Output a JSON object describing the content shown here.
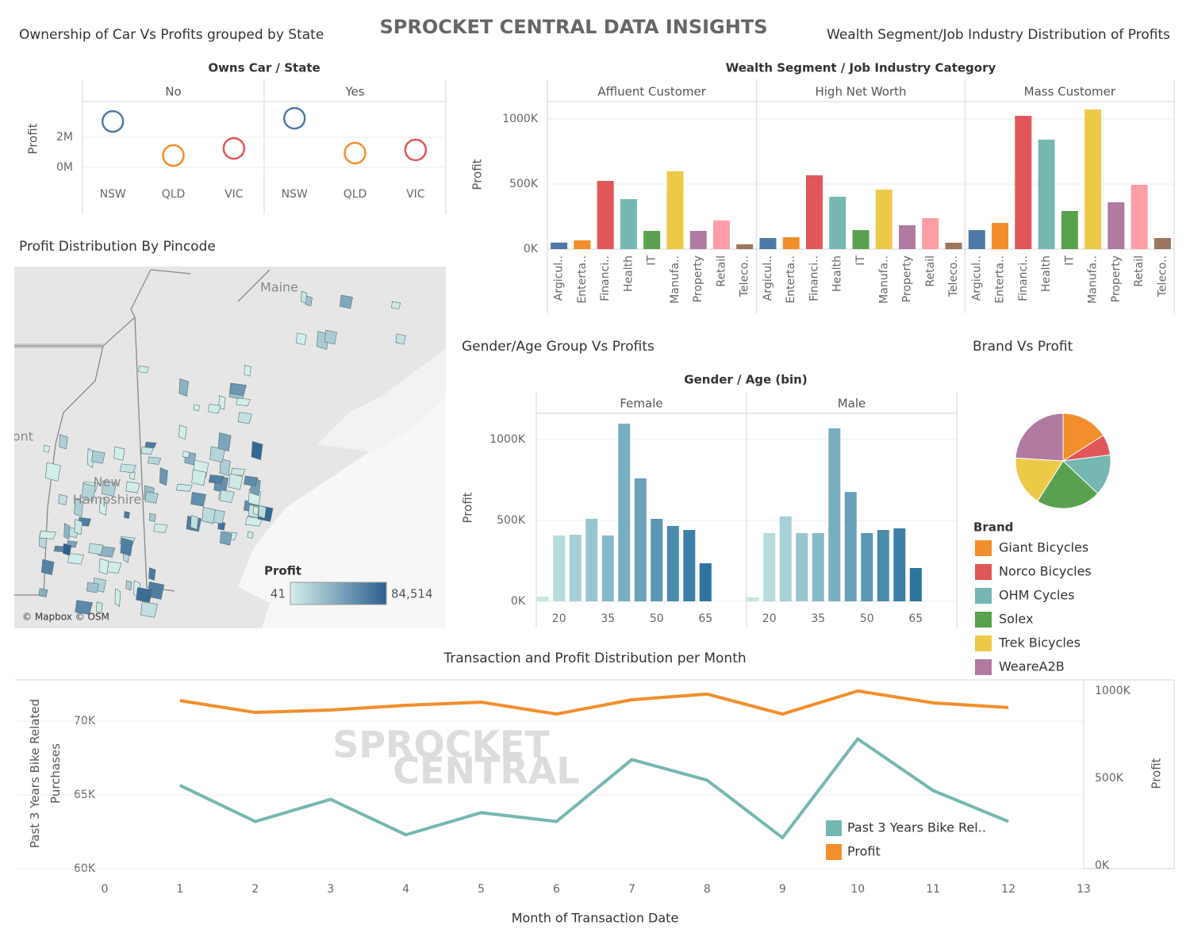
{
  "title": "SPROCKET CENTRAL DATA INSIGHTS",
  "chart_data": [
    {
      "type": "dot",
      "title": "Ownership of Car Vs Profits grouped by State",
      "header": "Owns Car  /  State",
      "y_label": "Profit",
      "categories": [
        "NSW",
        "QLD",
        "VIC"
      ],
      "colors": [
        "#4e79a7",
        "#f28e2b",
        "#e15759"
      ],
      "panels": [
        {
          "name": "No",
          "values": [
            3050000,
            790000,
            1260000
          ]
        },
        {
          "name": "Yes",
          "values": [
            3260000,
            950000,
            1160000
          ]
        }
      ],
      "ylim": [
        -790000,
        4370000
      ],
      "yticks": [
        {
          "value": 0,
          "label": "0M"
        },
        {
          "value": 2000000,
          "label": "2M"
        }
      ],
      "grid": true
    },
    {
      "type": "bar",
      "title": "Wealth Segment/Job Industry Distribution of Profits",
      "header": "Wealth Segment  /  Job Industry Category",
      "y_label": "Profit",
      "categories": [
        "Argicul..",
        "Enterta..",
        "Financi..",
        "Health",
        "IT",
        "Manufa..",
        "Property",
        "Retail",
        "Teleco.."
      ],
      "colors": [
        "#4e79a7",
        "#f28e2b",
        "#e15759",
        "#76b7b2",
        "#59a14f",
        "#edc948",
        "#b07aa1",
        "#ff9da7",
        "#9c755f"
      ],
      "panels": [
        {
          "name": "Affluent Customer",
          "values": [
            50000,
            67000,
            524000,
            384000,
            140000,
            598000,
            140000,
            220000,
            37000
          ]
        },
        {
          "name": "High Net Worth",
          "values": [
            85000,
            91000,
            567000,
            402000,
            146000,
            457000,
            183000,
            238000,
            49000
          ]
        },
        {
          "name": "Mass Customer",
          "values": [
            146000,
            201000,
            1024000,
            841000,
            293000,
            1073000,
            360000,
            494000,
            85000
          ]
        }
      ],
      "ylim": [
        0,
        1134000
      ],
      "yticks": [
        {
          "value": 0,
          "label": "0K"
        },
        {
          "value": 500000,
          "label": "500K"
        },
        {
          "value": 1000000,
          "label": "1000K"
        }
      ],
      "grid": true
    },
    {
      "type": "map",
      "title": "Profit Distribution By Pincode",
      "legend_title": "Profit",
      "color_range": [
        "#d4efeb",
        "#2c5f8e"
      ],
      "legend_ticks": [
        41,
        {
          "value": 84514,
          "label": "84,514"
        }
      ],
      "place_labels": [
        "Maine",
        "New Hampshire",
        "Vermont"
      ],
      "attribution": "© Mapbox © OSM"
    },
    {
      "type": "binned-bar",
      "title": "Gender/Age Group Vs Profits",
      "header": "Gender  /  Age (bin)",
      "y_label": "Profit",
      "x": [
        15,
        20,
        25,
        30,
        35,
        40,
        45,
        50,
        55,
        60,
        65
      ],
      "color_range": [
        "#c4e7e2",
        "#2d74a0"
      ],
      "panels": [
        {
          "name": "Female",
          "values": [
            29000,
            407000,
            412000,
            510000,
            407000,
            1098000,
            760000,
            510000,
            466000,
            441000,
            235000
          ]
        },
        {
          "name": "Male",
          "values": [
            25000,
            422000,
            525000,
            422000,
            422000,
            1069000,
            676000,
            422000,
            441000,
            451000,
            206000
          ]
        }
      ],
      "xlim": [
        13,
        77.6
      ],
      "xticks": [
        20,
        35,
        50,
        65
      ],
      "ylim": [
        0,
        1162000
      ],
      "yticks": [
        {
          "value": 0,
          "label": "0K"
        },
        {
          "value": 500000,
          "label": "500K"
        },
        {
          "value": 1000000,
          "label": "1000K"
        }
      ],
      "grid": true
    },
    {
      "type": "pie",
      "title": "Brand Vs Profit",
      "legend_title": "Brand",
      "categories": [
        "Giant Bicycles",
        "Norco Bicycles",
        "OHM Cycles",
        "Solex",
        "Trek Bicycles",
        "WeareA2B"
      ],
      "values": [
        16,
        7,
        14,
        22,
        17,
        24
      ],
      "colors": [
        "#f28e2b",
        "#e15759",
        "#76b7b2",
        "#59a14f",
        "#edc948",
        "#b07aa1"
      ]
    },
    {
      "type": "line",
      "title": "Transaction and Profit Distribution per Month",
      "x_label": "Month of Transaction Date",
      "y_label": "Past 3 Years Bike Related Purchases",
      "y2_label": "Profit",
      "watermark": [
        "SPROCKET",
        "CENTRAL"
      ],
      "x": [
        1,
        2,
        3,
        4,
        5,
        6,
        7,
        8,
        9,
        10,
        11,
        12
      ],
      "series": [
        {
          "name": "Past 3 Years Bike Rel..",
          "color": "#76b7b2",
          "values": [
            65650,
            63200,
            64700,
            62300,
            63800,
            63200,
            67400,
            66000,
            62100,
            68800,
            65300,
            63200
          ]
        },
        {
          "name": "Profit",
          "color": "#f28e2b",
          "axis": "y2",
          "values": [
            945000,
            877000,
            891000,
            918000,
            936000,
            868000,
            950000,
            982000,
            868000,
            1000000,
            932000,
            905000
          ]
        }
      ],
      "xlim": [
        -1.2,
        13
      ],
      "xticks": [
        0,
        1,
        2,
        3,
        4,
        5,
        6,
        7,
        8,
        9,
        10,
        11,
        12,
        13
      ],
      "ylim": [
        60000,
        72800
      ],
      "yticks": [
        {
          "value": 60000,
          "label": "60K"
        },
        {
          "value": 65000,
          "label": "65K"
        },
        {
          "value": 70000,
          "label": "70K"
        }
      ],
      "y2lim": [
        -18000,
        1063600
      ],
      "y2ticks": [
        {
          "value": 0,
          "label": "0K"
        },
        {
          "value": 500000,
          "label": "500K"
        },
        {
          "value": 1000000,
          "label": "1000K"
        }
      ],
      "grid": true
    }
  ]
}
